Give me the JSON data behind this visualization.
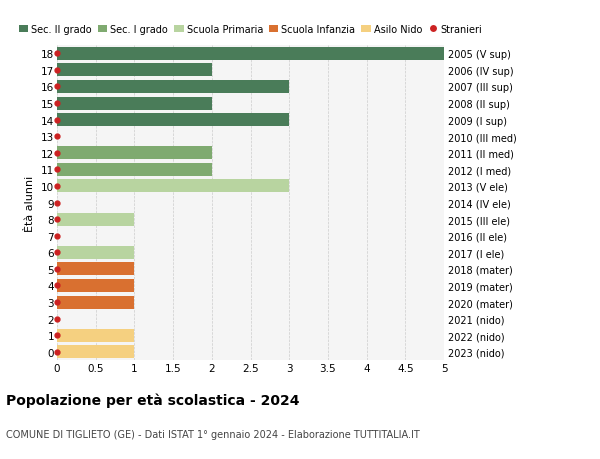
{
  "ages": [
    18,
    17,
    16,
    15,
    14,
    13,
    12,
    11,
    10,
    9,
    8,
    7,
    6,
    5,
    4,
    3,
    2,
    1,
    0
  ],
  "right_labels": [
    "2005 (V sup)",
    "2006 (IV sup)",
    "2007 (III sup)",
    "2008 (II sup)",
    "2009 (I sup)",
    "2010 (III med)",
    "2011 (II med)",
    "2012 (I med)",
    "2013 (V ele)",
    "2014 (IV ele)",
    "2015 (III ele)",
    "2016 (II ele)",
    "2017 (I ele)",
    "2018 (mater)",
    "2019 (mater)",
    "2020 (mater)",
    "2021 (nido)",
    "2022 (nido)",
    "2023 (nido)"
  ],
  "bar_values": [
    5,
    2,
    3,
    2,
    3,
    0,
    2,
    2,
    3,
    0,
    1,
    0,
    1,
    1,
    1,
    1,
    0,
    1,
    1
  ],
  "bar_colors": [
    "#4a7c59",
    "#4a7c59",
    "#4a7c59",
    "#4a7c59",
    "#4a7c59",
    "#4a7c59",
    "#7faa70",
    "#7faa70",
    "#b8d4a0",
    "#b8d4a0",
    "#b8d4a0",
    "#b8d4a0",
    "#b8d4a0",
    "#d97030",
    "#d97030",
    "#d97030",
    "#f5d080",
    "#f5d080",
    "#f5d080"
  ],
  "stranieri_dots": [
    18,
    17,
    16,
    15,
    14,
    13,
    12,
    11,
    10,
    9,
    8,
    7,
    6,
    5,
    4,
    3,
    2,
    1,
    0
  ],
  "legend_labels": [
    "Sec. II grado",
    "Sec. I grado",
    "Scuola Primaria",
    "Scuola Infanzia",
    "Asilo Nido",
    "Stranieri"
  ],
  "legend_colors": [
    "#4a7c59",
    "#7faa70",
    "#b8d4a0",
    "#d97030",
    "#f5d080",
    "#cc2222"
  ],
  "title": "Popolazione per età scolastica - 2024",
  "subtitle": "COMUNE DI TIGLIETO (GE) - Dati ISTAT 1° gennaio 2024 - Elaborazione TUTTITALIA.IT",
  "ylabel_left": "Ètà alunni",
  "xlim": [
    0,
    5.0
  ],
  "xticks": [
    0,
    0.5,
    1.0,
    1.5,
    2.0,
    2.5,
    3.0,
    3.5,
    4.0,
    4.5,
    5.0
  ],
  "bg_color": "#ffffff",
  "plot_bg_color": "#f5f5f5"
}
